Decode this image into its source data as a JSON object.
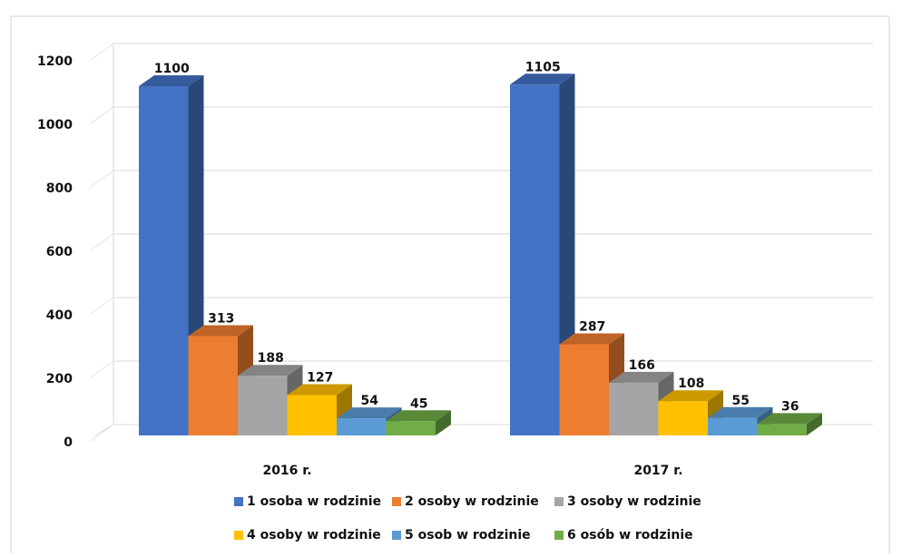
{
  "chart_data": {
    "type": "bar3d",
    "categories": [
      "2016 r.",
      "2017 r."
    ],
    "series": [
      {
        "name": "1 osoba w rodzinie",
        "color": "#4472c4",
        "values": [
          1100,
          1105
        ]
      },
      {
        "name": "2 osoby w rodzinie",
        "color": "#ed7d31",
        "values": [
          313,
          287
        ]
      },
      {
        "name": "3 osoby w rodzinie",
        "color": "#a5a5a5",
        "values": [
          188,
          166
        ]
      },
      {
        "name": "4 osoby w rodzinie",
        "color": "#ffc000",
        "values": [
          127,
          108
        ]
      },
      {
        "name": "5 osob w rodzinie",
        "color": "#5b9bd5",
        "values": [
          54,
          55
        ]
      },
      {
        "name": "6 osób w rodzinie",
        "color": "#70ad47",
        "values": [
          45,
          36
        ]
      }
    ],
    "ylim": [
      0,
      1200
    ],
    "yticks": [
      0,
      200,
      400,
      600,
      800,
      1000,
      1200
    ],
    "grid": true,
    "data_labels": true,
    "legend": "bottom"
  }
}
